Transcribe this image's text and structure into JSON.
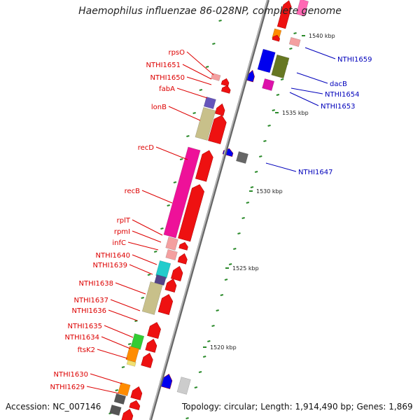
{
  "title": "Haemophilus influenzae 86-028NP, complete genome",
  "accession_text": "Accession: NC_007146",
  "summary_text": "Topology: circular; Length: 1,914,490 bp; Genes: 1,869",
  "ticks": [
    "1540 kbp",
    "1535 kbp",
    "1530 kbp",
    "1525 kbp",
    "1520 kbp"
  ],
  "colors": {
    "forward_label": "#dd0000",
    "reverse_label": "#0000bb",
    "backbone": "#888888"
  },
  "forward_labels": [
    "rpsO",
    "NTHI1651",
    "NTHI1650",
    "fabA",
    "lonB",
    "recD",
    "recB",
    "rplT",
    "rpmI",
    "infC",
    "NTHI1640",
    "NTHI1639",
    "NTHI1638",
    "NTHI1637",
    "NTHI1636",
    "NTHI1635",
    "NTHI1634",
    "ftsK2",
    "NTHI1630",
    "NTHI1629"
  ],
  "reverse_labels": [
    "NTHI1659",
    "dacB",
    "NTHI1654",
    "NTHI1653",
    "NTHI1647"
  ]
}
